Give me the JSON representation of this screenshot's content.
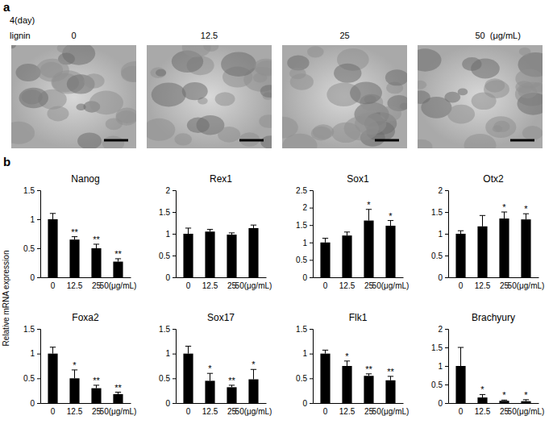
{
  "figure": {
    "panel_labels": [
      "a",
      "b"
    ],
    "panel_a": {
      "day_label": "4(day)",
      "row_label": "lignin",
      "concentrations": [
        "0",
        "12.5",
        "25",
        "50"
      ],
      "unit": "(μg/mL)"
    },
    "y_label": "Relative mRNA expression"
  },
  "chart_data": [
    {
      "type": "bar",
      "title": "Nanog",
      "categories": [
        "0",
        "12.5",
        "25",
        "50(μg/mL)"
      ],
      "values": [
        1.0,
        0.65,
        0.5,
        0.27
      ],
      "errors": [
        0.1,
        0.05,
        0.07,
        0.05
      ],
      "significance": [
        null,
        "**",
        "**",
        "**"
      ],
      "color": "#000000",
      "ylim": [
        0,
        1.5
      ],
      "yticks": [
        0,
        0.5,
        1,
        1.5
      ]
    },
    {
      "type": "bar",
      "title": "Rex1",
      "categories": [
        "0",
        "12.5",
        "25",
        "50(μg/mL)"
      ],
      "values": [
        1.0,
        1.05,
        0.98,
        1.13
      ],
      "errors": [
        0.13,
        0.05,
        0.04,
        0.07
      ],
      "significance": [
        null,
        null,
        null,
        null
      ],
      "color": "#000000",
      "ylim": [
        0,
        2
      ],
      "yticks": [
        0,
        0.5,
        1,
        1.5,
        2
      ]
    },
    {
      "type": "bar",
      "title": "Sox1",
      "categories": [
        "0",
        "12.5",
        "25",
        "50(μg/mL)"
      ],
      "values": [
        1.0,
        1.2,
        1.63,
        1.48
      ],
      "errors": [
        0.12,
        0.1,
        0.32,
        0.15
      ],
      "significance": [
        null,
        null,
        "*",
        "*"
      ],
      "color": "#000000",
      "ylim": [
        0,
        2.5
      ],
      "yticks": [
        0,
        0.5,
        1,
        1.5,
        2,
        2.5
      ]
    },
    {
      "type": "bar",
      "title": "Otx2",
      "categories": [
        "0",
        "12.5",
        "25",
        "50(μg/mL)"
      ],
      "values": [
        1.0,
        1.17,
        1.35,
        1.33
      ],
      "errors": [
        0.07,
        0.25,
        0.15,
        0.13
      ],
      "significance": [
        null,
        null,
        "*",
        "*"
      ],
      "color": "#000000",
      "ylim": [
        0,
        2
      ],
      "yticks": [
        0,
        0.5,
        1,
        1.5,
        2
      ]
    },
    {
      "type": "bar",
      "title": "Foxa2",
      "categories": [
        "0",
        "12.5",
        "25",
        "50(μg/mL)"
      ],
      "values": [
        1.0,
        0.5,
        0.3,
        0.18
      ],
      "errors": [
        0.13,
        0.17,
        0.06,
        0.04
      ],
      "significance": [
        null,
        "*",
        "**",
        "**"
      ],
      "color": "#000000",
      "ylim": [
        0,
        1.5
      ],
      "yticks": [
        0,
        0.5,
        1,
        1.5
      ]
    },
    {
      "type": "bar",
      "title": "Sox17",
      "categories": [
        "0",
        "12.5",
        "25",
        "50(μg/mL)"
      ],
      "values": [
        1.0,
        0.45,
        0.32,
        0.48
      ],
      "errors": [
        0.15,
        0.15,
        0.04,
        0.2
      ],
      "significance": [
        null,
        "*",
        "**",
        "*"
      ],
      "color": "#000000",
      "ylim": [
        0,
        1.5
      ],
      "yticks": [
        0,
        0.5,
        1,
        1.5
      ]
    },
    {
      "type": "bar",
      "title": "Flk1",
      "categories": [
        "0",
        "12.5",
        "25",
        "50(μg/mL)"
      ],
      "values": [
        1.0,
        0.75,
        0.55,
        0.46
      ],
      "errors": [
        0.07,
        0.1,
        0.04,
        0.08
      ],
      "significance": [
        null,
        "*",
        "**",
        "**"
      ],
      "color": "#000000",
      "ylim": [
        0,
        1.5
      ],
      "yticks": [
        0,
        0.5,
        1,
        1.5
      ]
    },
    {
      "type": "bar",
      "title": "Brachyury",
      "categories": [
        "0",
        "12.5",
        "25",
        "50(μg/mL)"
      ],
      "values": [
        1.0,
        0.15,
        0.06,
        0.05
      ],
      "errors": [
        0.5,
        0.08,
        0.02,
        0.04
      ],
      "significance": [
        null,
        "*",
        "*",
        "*"
      ],
      "color": "#000000",
      "ylim": [
        0,
        2
      ],
      "yticks": [
        0,
        0.5,
        1,
        1.5,
        2
      ]
    }
  ]
}
